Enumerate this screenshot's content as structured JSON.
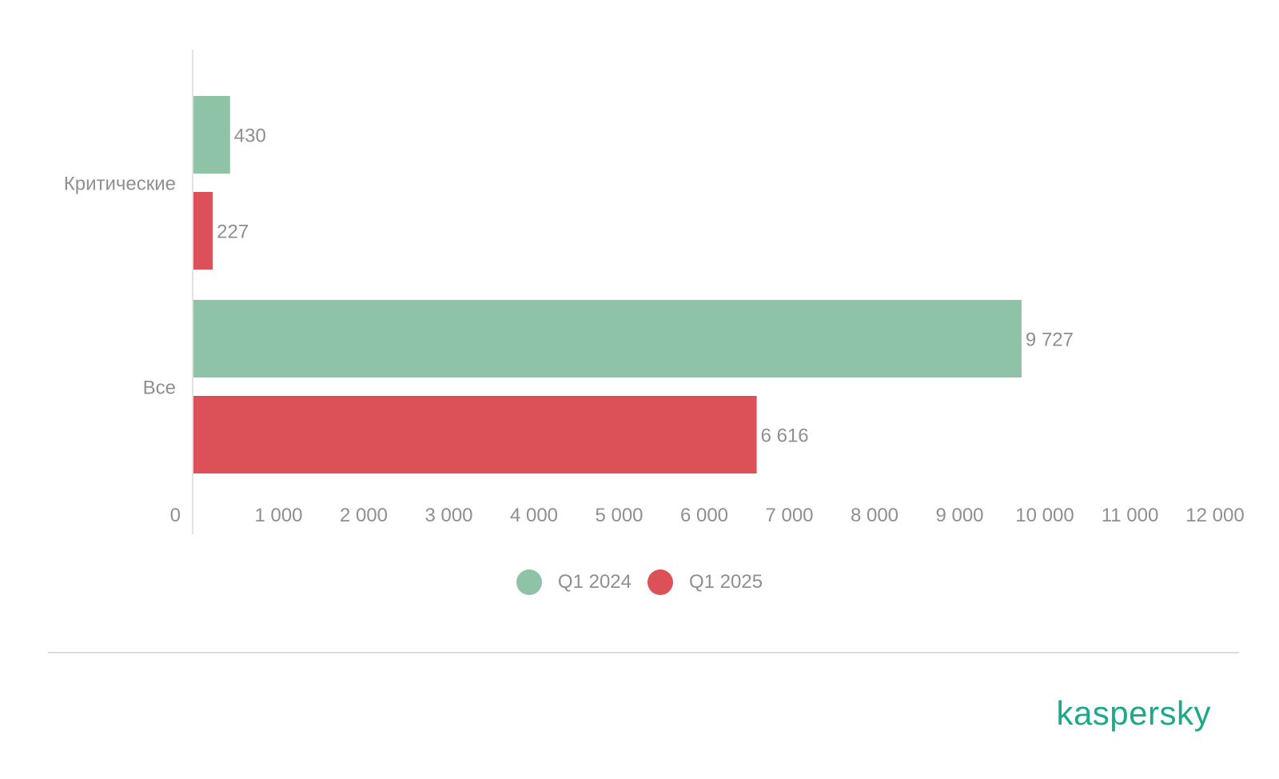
{
  "chart_data": {
    "type": "bar",
    "orientation": "horizontal",
    "categories": [
      "Критические",
      "Все"
    ],
    "series": [
      {
        "name": "Q1 2024",
        "color": "#8fc3a7",
        "values": [
          430,
          9727
        ],
        "labels": [
          "430",
          "9 727"
        ]
      },
      {
        "name": "Q1 2025",
        "color": "#db5157",
        "values": [
          227,
          6616
        ],
        "labels": [
          "227",
          "6 616"
        ]
      }
    ],
    "xlim": [
      0,
      12000
    ],
    "xticks": [
      0,
      1000,
      2000,
      3000,
      4000,
      5000,
      6000,
      7000,
      8000,
      9000,
      10000,
      11000,
      12000
    ],
    "xtick_labels": [
      "0",
      "1 000",
      "2 000",
      "3 000",
      "4 000",
      "5 000",
      "6 000",
      "7 000",
      "8 000",
      "9 000",
      "10 000",
      "11 000",
      "12 000"
    ],
    "grid": false,
    "legend_position": "bottom-center",
    "title": "",
    "xlabel": "",
    "ylabel": ""
  },
  "logo": {
    "text": "kaspersky",
    "color": "#1ca98a"
  }
}
